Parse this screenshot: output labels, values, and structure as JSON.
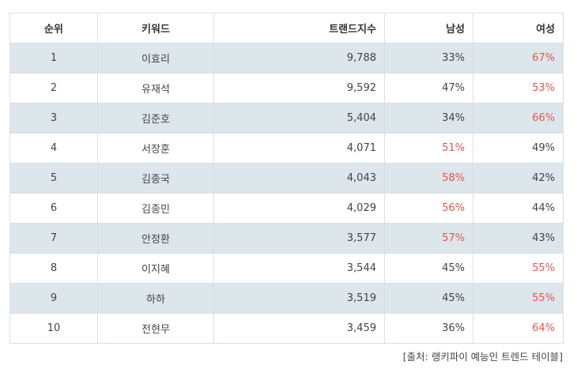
{
  "table": {
    "headers": [
      "순위",
      "키워드",
      "트랜드지수",
      "남성",
      "여성"
    ],
    "rows": [
      {
        "rank": "1",
        "keyword": "이효리",
        "trend": "9,788",
        "male": "33%",
        "female": "67%",
        "highlight": "female"
      },
      {
        "rank": "2",
        "keyword": "유재석",
        "trend": "9,592",
        "male": "47%",
        "female": "53%",
        "highlight": "female"
      },
      {
        "rank": "3",
        "keyword": "김준호",
        "trend": "5,404",
        "male": "34%",
        "female": "66%",
        "highlight": "female"
      },
      {
        "rank": "4",
        "keyword": "서장훈",
        "trend": "4,071",
        "male": "51%",
        "female": "49%",
        "highlight": "male"
      },
      {
        "rank": "5",
        "keyword": "김종국",
        "trend": "4,043",
        "male": "58%",
        "female": "42%",
        "highlight": "male"
      },
      {
        "rank": "6",
        "keyword": "김종민",
        "trend": "4,029",
        "male": "56%",
        "female": "44%",
        "highlight": "male"
      },
      {
        "rank": "7",
        "keyword": "안정환",
        "trend": "3,577",
        "male": "57%",
        "female": "43%",
        "highlight": "male"
      },
      {
        "rank": "8",
        "keyword": "이지혜",
        "trend": "3,544",
        "male": "45%",
        "female": "55%",
        "highlight": "female"
      },
      {
        "rank": "9",
        "keyword": "하하",
        "trend": "3,519",
        "male": "45%",
        "female": "55%",
        "highlight": "female"
      },
      {
        "rank": "10",
        "keyword": "전현무",
        "trend": "3,459",
        "male": "36%",
        "female": "64%",
        "highlight": "female"
      }
    ]
  },
  "source": "[출처: 랭키파이 예능인 트렌드 테이블]",
  "colors": {
    "shaded_row": "#dce6eb",
    "highlight_text": "#e8554e",
    "border": "#dadfe3"
  }
}
